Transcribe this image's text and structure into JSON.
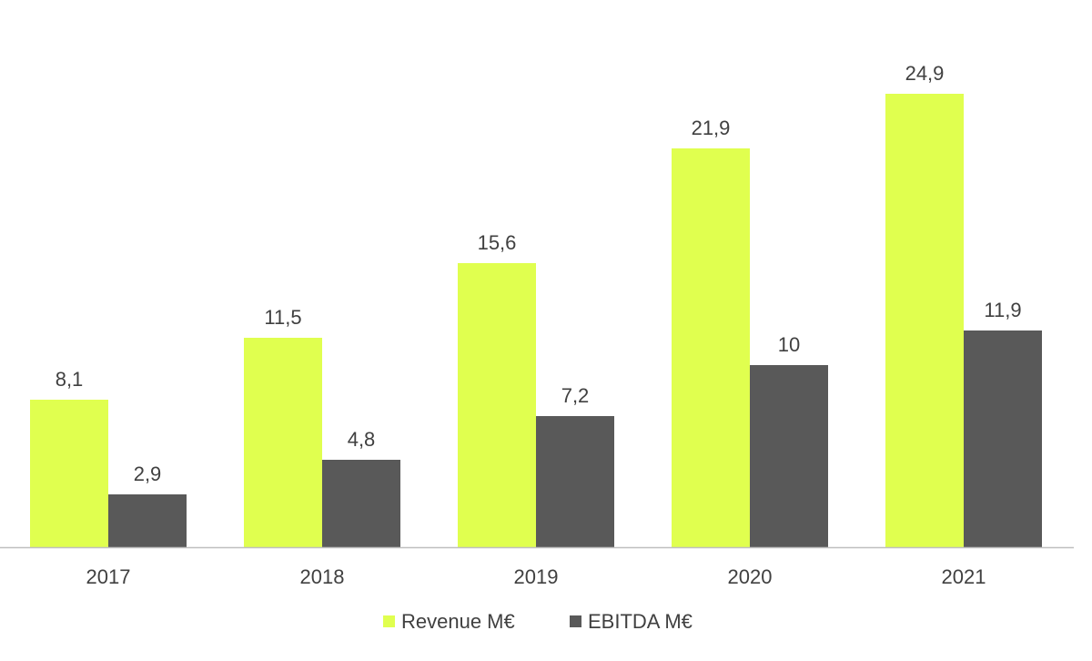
{
  "chart_data": {
    "type": "bar",
    "categories": [
      "2017",
      "2018",
      "2019",
      "2020",
      "2021"
    ],
    "series": [
      {
        "name": "Revenue M€",
        "values": [
          8.1,
          11.5,
          15.6,
          21.9,
          24.9
        ],
        "labels": [
          "8,1",
          "11,5",
          "15,6",
          "21,9",
          "24,9"
        ],
        "color": "#e0ff4f"
      },
      {
        "name": "EBITDA M€",
        "values": [
          2.9,
          4.8,
          7.2,
          10,
          11.9
        ],
        "labels": [
          "2,9",
          "4,8",
          "7,2",
          "10",
          "11,9"
        ],
        "color": "#595959"
      }
    ],
    "ylim": [
      0,
      25
    ],
    "grid": false,
    "legend_position": "bottom",
    "axis_color": "#bfbfbf",
    "text_color": "#404040"
  }
}
